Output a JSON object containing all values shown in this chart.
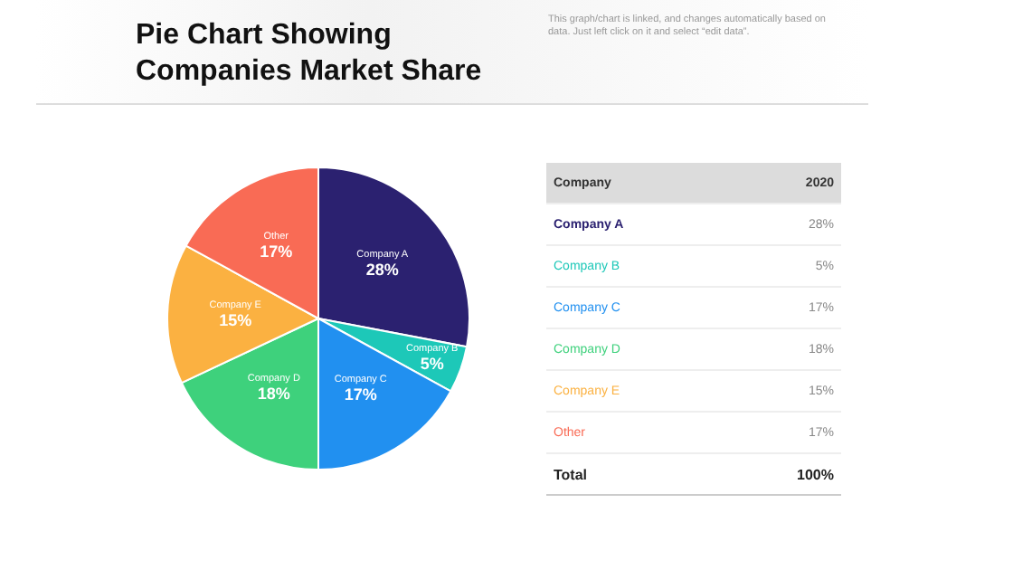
{
  "chart_data": {
    "type": "pie",
    "title": "Pie Chart Showing Companies Market Share",
    "subtitle": "This graph/chart is linked, and changes automatically based on data. Just left click on it and select “edit data”.",
    "categories": [
      "Company A",
      "Company B",
      "Company C",
      "Company D",
      "Company E",
      "Other"
    ],
    "values": [
      28,
      5,
      17,
      18,
      15,
      17
    ],
    "value_labels": [
      "28%",
      "5%",
      "17%",
      "18%",
      "15%",
      "17%"
    ],
    "colors": [
      "#2b2170",
      "#1dc8b8",
      "#2190f0",
      "#3ed17c",
      "#fbb141",
      "#f96b55"
    ],
    "legend_title": "Company",
    "annotations": [
      "2020",
      "Total",
      "100%"
    ],
    "legend": false
  }
}
